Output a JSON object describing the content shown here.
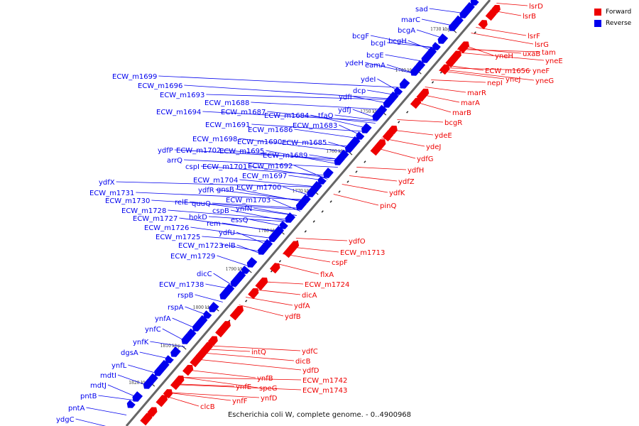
{
  "title": "Escherichia coli W, complete genome. - 0..4900968",
  "colors": {
    "forward": "#ee0000",
    "reverse": "#0000ee",
    "axis": "#666666",
    "tick": "#111111"
  },
  "legend": [
    {
      "label": "Forward",
      "color": "#ee0000"
    },
    {
      "label": "Reverse",
      "color": "#0000ee"
    }
  ],
  "scale_labels": [
    "1730 kbp",
    "1740 kbp",
    "1750 kbp",
    "1760 kbp",
    "1770 kbp",
    "1780 kbp",
    "1790 kbp",
    "1800 kbp",
    "1810 kbp",
    "1820 kbp"
  ],
  "reverse_genes": [
    "sad",
    "marC",
    "bcgA",
    "bcgH",
    "bcgF",
    "bcgI",
    "bcgE",
    "eamA",
    "ydeH",
    "ydeI",
    "dcp",
    "ydfI",
    "ydfJ",
    "ECW_m1699",
    "ECW_m1696",
    "ECW_m1693",
    "ECW_m1688",
    "ECW_m1694",
    "ECW_m1687",
    "ECW_m1684",
    "tfaQ",
    "ECW_m1691",
    "ECW_m1686",
    "ECW_m1683",
    "ECW_m1698",
    "ECW_m1690",
    "ECW_m1685",
    "ydfP",
    "ECW_m1702",
    "ECW_m1695",
    "ECW_m1689",
    "arrQ",
    "cspI",
    "ECW_m1701",
    "ECW_m1692",
    "ECW_m1697",
    "ECW_m1704",
    "ECW_m1700",
    "ydfR",
    "gnsB",
    "ydfX",
    "ECW_m1731",
    "ECW_m1730",
    "ECW_m1703",
    "relE",
    "quuQ",
    "ynfN",
    "ECW_m1728",
    "cspB",
    "ECW_m1727",
    "hokD",
    "essQ",
    "rem",
    "ECW_m1726",
    "ydfU",
    "ECW_m1725",
    "ECW_m1723",
    "relB",
    "ECW_m1729",
    "dicC",
    "ECW_m1738",
    "rspB",
    "rspA",
    "ynfA",
    "ynfC",
    "ynfK",
    "dgsA",
    "ynfL",
    "mdtI",
    "mdtJ",
    "pntB",
    "pntA",
    "ydgC"
  ],
  "forward_genes": [
    "lsrD",
    "lsrB",
    "lsrF",
    "lsrG",
    "tam",
    "uxaB",
    "yneE",
    "yneH",
    "yneF",
    "ECW_m1656",
    "yneJ",
    "yneG",
    "nepI",
    "marR",
    "marA",
    "marB",
    "bcgR",
    "ydeE",
    "ydeJ",
    "ydfG",
    "ydfH",
    "ydfZ",
    "ydfK",
    "pinQ",
    "ydfO",
    "ECW_m1713",
    "cspF",
    "flxA",
    "ECW_m1724",
    "dicA",
    "ydfA",
    "ydfB",
    "intQ",
    "ydfC",
    "dicB",
    "ydfD",
    "ECW_m1742",
    "ECW_m1743",
    "ynfB",
    "speG",
    "ynfE",
    "ynfD",
    "ynfF",
    "clcB"
  ]
}
